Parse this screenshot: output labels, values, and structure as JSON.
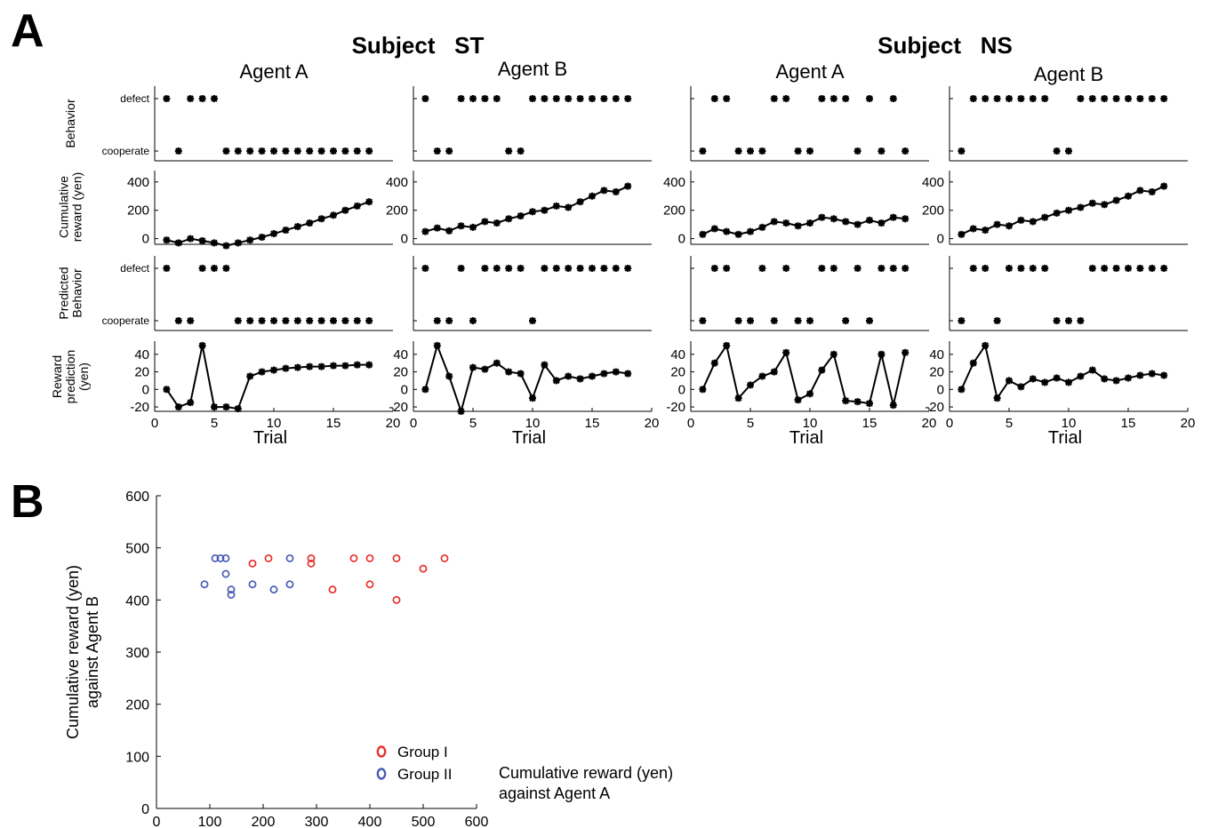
{
  "figure": {
    "panel_a_letter": "A",
    "panel_b_letter": "B",
    "subjects": [
      {
        "title": "Subject   ST"
      },
      {
        "title": "Subject   NS"
      }
    ],
    "row_labels": {
      "behavior": [
        "Behavior"
      ],
      "cumulative": [
        "Cumulative",
        "reward (yen)"
      ],
      "predicted": [
        "Predicted",
        "Behavior"
      ],
      "reward_pred": [
        "Reward",
        "prediction",
        "(yen)"
      ]
    },
    "behavior_ticks": [
      "defect",
      "cooperate"
    ],
    "x_axis_label": "Trial",
    "legend": [
      "Group I",
      "Group II"
    ],
    "colors": {
      "group1": "#e8302a",
      "group2": "#4a5bb5",
      "marks": "#000000"
    }
  },
  "chart_data": [
    {
      "type": "line",
      "panel": "A",
      "subject": "Subject ST",
      "title": "Agent A",
      "xlabel": "Trial",
      "xlim": [
        0,
        20
      ],
      "xticks": [
        0,
        5,
        10,
        15,
        20
      ],
      "behavior": {
        "yticklabels": [
          "defect",
          "cooperate"
        ],
        "x": [
          1,
          2,
          3,
          4,
          5,
          6,
          7,
          8,
          9,
          10,
          11,
          12,
          13,
          14,
          15,
          16,
          17,
          18
        ],
        "values": [
          "defect",
          "cooperate",
          "defect",
          "defect",
          "defect",
          "cooperate",
          "cooperate",
          "cooperate",
          "cooperate",
          "cooperate",
          "cooperate",
          "cooperate",
          "cooperate",
          "cooperate",
          "cooperate",
          "cooperate",
          "cooperate",
          "cooperate"
        ]
      },
      "cumulative_reward": {
        "ylabel": "Cumulative reward (yen)",
        "ylim": [
          -40,
          480
        ],
        "yticks": [
          0,
          200,
          400
        ],
        "x": [
          1,
          2,
          3,
          4,
          5,
          6,
          7,
          8,
          9,
          10,
          11,
          12,
          13,
          14,
          15,
          16,
          17,
          18
        ],
        "values": [
          -10,
          -30,
          0,
          -15,
          -30,
          -50,
          -30,
          -10,
          10,
          35,
          60,
          85,
          110,
          140,
          165,
          200,
          230,
          260
        ]
      },
      "predicted_behavior": {
        "yticklabels": [
          "defect",
          "cooperate"
        ],
        "x": [
          1,
          2,
          3,
          4,
          5,
          6,
          7,
          8,
          9,
          10,
          11,
          12,
          13,
          14,
          15,
          16,
          17,
          18
        ],
        "values": [
          "defect",
          "cooperate",
          "cooperate",
          "defect",
          "defect",
          "defect",
          "cooperate",
          "cooperate",
          "cooperate",
          "cooperate",
          "cooperate",
          "cooperate",
          "cooperate",
          "cooperate",
          "cooperate",
          "cooperate",
          "cooperate",
          "cooperate"
        ]
      },
      "reward_prediction": {
        "ylabel": "Reward prediction (yen)",
        "ylim": [
          -25,
          55
        ],
        "yticks": [
          -20,
          0,
          20,
          40
        ],
        "x": [
          1,
          2,
          3,
          4,
          5,
          6,
          7,
          8,
          9,
          10,
          11,
          12,
          13,
          14,
          15,
          16,
          17,
          18
        ],
        "values": [
          0,
          -20,
          -15,
          50,
          -20,
          -20,
          -22,
          15,
          20,
          22,
          24,
          25,
          26,
          26,
          27,
          27,
          28,
          28
        ]
      }
    },
    {
      "type": "line",
      "panel": "A",
      "subject": "Subject ST",
      "title": "Agent B",
      "xlabel": "Trial",
      "xlim": [
        0,
        20
      ],
      "xticks": [
        0,
        5,
        10,
        15,
        20
      ],
      "behavior": {
        "yticklabels": [
          "defect",
          "cooperate"
        ],
        "x": [
          1,
          2,
          3,
          4,
          5,
          6,
          7,
          8,
          9,
          10,
          11,
          12,
          13,
          14,
          15,
          16,
          17,
          18
        ],
        "values": [
          "defect",
          "cooperate",
          "cooperate",
          "defect",
          "defect",
          "defect",
          "defect",
          "cooperate",
          "cooperate",
          "defect",
          "defect",
          "defect",
          "defect",
          "defect",
          "defect",
          "defect",
          "defect",
          "defect"
        ]
      },
      "cumulative_reward": {
        "ylabel": "Cumulative reward (yen)",
        "ylim": [
          -40,
          480
        ],
        "yticks": [
          0,
          200,
          400
        ],
        "x": [
          1,
          2,
          3,
          4,
          5,
          6,
          7,
          8,
          9,
          10,
          11,
          12,
          13,
          14,
          15,
          16,
          17,
          18
        ],
        "values": [
          50,
          75,
          55,
          90,
          80,
          120,
          110,
          140,
          160,
          190,
          200,
          230,
          220,
          260,
          300,
          340,
          330,
          370
        ]
      },
      "predicted_behavior": {
        "yticklabels": [
          "defect",
          "cooperate"
        ],
        "x": [
          1,
          2,
          3,
          4,
          5,
          6,
          7,
          8,
          9,
          10,
          11,
          12,
          13,
          14,
          15,
          16,
          17,
          18
        ],
        "values": [
          "defect",
          "cooperate",
          "cooperate",
          "defect",
          "cooperate",
          "defect",
          "defect",
          "defect",
          "defect",
          "cooperate",
          "defect",
          "defect",
          "defect",
          "defect",
          "defect",
          "defect",
          "defect",
          "defect"
        ]
      },
      "reward_prediction": {
        "ylabel": "Reward prediction (yen)",
        "ylim": [
          -25,
          55
        ],
        "yticks": [
          -20,
          0,
          20,
          40
        ],
        "x": [
          1,
          2,
          3,
          4,
          5,
          6,
          7,
          8,
          9,
          10,
          11,
          12,
          13,
          14,
          15,
          16,
          17,
          18
        ],
        "values": [
          0,
          50,
          15,
          -25,
          25,
          23,
          30,
          20,
          18,
          -10,
          28,
          10,
          15,
          12,
          15,
          18,
          20,
          18
        ]
      }
    },
    {
      "type": "line",
      "panel": "A",
      "subject": "Subject NS",
      "title": "Agent A",
      "xlabel": "Trial",
      "xlim": [
        0,
        20
      ],
      "xticks": [
        0,
        5,
        10,
        15,
        20
      ],
      "behavior": {
        "yticklabels": [
          "defect",
          "cooperate"
        ],
        "x": [
          1,
          2,
          3,
          4,
          5,
          6,
          7,
          8,
          9,
          10,
          11,
          12,
          13,
          14,
          15,
          16,
          17,
          18
        ],
        "values": [
          "cooperate",
          "defect",
          "defect",
          "cooperate",
          "cooperate",
          "cooperate",
          "defect",
          "defect",
          "cooperate",
          "cooperate",
          "defect",
          "defect",
          "defect",
          "cooperate",
          "defect",
          "cooperate",
          "defect",
          "cooperate"
        ]
      },
      "cumulative_reward": {
        "ylabel": "Cumulative reward (yen)",
        "ylim": [
          -40,
          480
        ],
        "yticks": [
          0,
          200,
          400
        ],
        "x": [
          1,
          2,
          3,
          4,
          5,
          6,
          7,
          8,
          9,
          10,
          11,
          12,
          13,
          14,
          15,
          16,
          17,
          18
        ],
        "values": [
          30,
          70,
          50,
          30,
          50,
          80,
          120,
          110,
          90,
          110,
          150,
          140,
          120,
          100,
          130,
          110,
          150,
          140
        ]
      },
      "predicted_behavior": {
        "yticklabels": [
          "defect",
          "cooperate"
        ],
        "x": [
          1,
          2,
          3,
          4,
          5,
          6,
          7,
          8,
          9,
          10,
          11,
          12,
          13,
          14,
          15,
          16,
          17,
          18
        ],
        "values": [
          "cooperate",
          "defect",
          "defect",
          "cooperate",
          "cooperate",
          "defect",
          "cooperate",
          "defect",
          "cooperate",
          "cooperate",
          "defect",
          "defect",
          "cooperate",
          "defect",
          "cooperate",
          "defect",
          "defect",
          "defect"
        ]
      },
      "reward_prediction": {
        "ylabel": "Reward prediction (yen)",
        "ylim": [
          -25,
          55
        ],
        "yticks": [
          -20,
          0,
          20,
          40
        ],
        "x": [
          1,
          2,
          3,
          4,
          5,
          6,
          7,
          8,
          9,
          10,
          11,
          12,
          13,
          14,
          15,
          16,
          17,
          18
        ],
        "values": [
          0,
          30,
          50,
          -10,
          5,
          15,
          20,
          42,
          -12,
          -5,
          22,
          40,
          -13,
          -14,
          -16,
          40,
          -18,
          42
        ]
      }
    },
    {
      "type": "line",
      "panel": "A",
      "subject": "Subject NS",
      "title": "Agent B",
      "xlabel": "Trial",
      "xlim": [
        0,
        20
      ],
      "xticks": [
        0,
        5,
        10,
        15,
        20
      ],
      "behavior": {
        "yticklabels": [
          "defect",
          "cooperate"
        ],
        "x": [
          1,
          2,
          3,
          4,
          5,
          6,
          7,
          8,
          9,
          10,
          11,
          12,
          13,
          14,
          15,
          16,
          17,
          18
        ],
        "values": [
          "cooperate",
          "defect",
          "defect",
          "defect",
          "defect",
          "defect",
          "defect",
          "defect",
          "cooperate",
          "cooperate",
          "defect",
          "defect",
          "defect",
          "defect",
          "defect",
          "defect",
          "defect",
          "defect"
        ]
      },
      "cumulative_reward": {
        "ylabel": "Cumulative reward (yen)",
        "ylim": [
          -40,
          480
        ],
        "yticks": [
          0,
          200,
          400
        ],
        "x": [
          1,
          2,
          3,
          4,
          5,
          6,
          7,
          8,
          9,
          10,
          11,
          12,
          13,
          14,
          15,
          16,
          17,
          18
        ],
        "values": [
          30,
          70,
          60,
          100,
          90,
          130,
          120,
          150,
          180,
          200,
          220,
          250,
          240,
          270,
          300,
          340,
          330,
          370
        ]
      },
      "predicted_behavior": {
        "yticklabels": [
          "defect",
          "cooperate"
        ],
        "x": [
          1,
          2,
          3,
          4,
          5,
          6,
          7,
          8,
          9,
          10,
          11,
          12,
          13,
          14,
          15,
          16,
          17,
          18
        ],
        "values": [
          "cooperate",
          "defect",
          "defect",
          "cooperate",
          "defect",
          "defect",
          "defect",
          "defect",
          "cooperate",
          "cooperate",
          "cooperate",
          "defect",
          "defect",
          "defect",
          "defect",
          "defect",
          "defect",
          "defect"
        ]
      },
      "reward_prediction": {
        "ylabel": "Reward prediction (yen)",
        "ylim": [
          -25,
          55
        ],
        "yticks": [
          -20,
          0,
          20,
          40
        ],
        "x": [
          1,
          2,
          3,
          4,
          5,
          6,
          7,
          8,
          9,
          10,
          11,
          12,
          13,
          14,
          15,
          16,
          17,
          18
        ],
        "values": [
          0,
          30,
          50,
          -10,
          10,
          3,
          12,
          8,
          13,
          8,
          15,
          22,
          12,
          10,
          13,
          16,
          18,
          16
        ]
      }
    },
    {
      "type": "scatter",
      "panel": "B",
      "xlabel": "Cumulative reward (yen) against Agent A",
      "ylabel": "Cumulative reward (yen) against Agent B",
      "xlim": [
        0,
        600
      ],
      "ylim": [
        0,
        600
      ],
      "xticks": [
        0,
        100,
        200,
        300,
        400,
        500,
        600
      ],
      "yticks": [
        0,
        100,
        200,
        300,
        400,
        500,
        600
      ],
      "legend": "bottom-left",
      "series": [
        {
          "name": "Group I",
          "color": "#e8302a",
          "points": [
            [
              180,
              470
            ],
            [
              210,
              480
            ],
            [
              290,
              480
            ],
            [
              290,
              470
            ],
            [
              330,
              420
            ],
            [
              370,
              480
            ],
            [
              400,
              480
            ],
            [
              400,
              430
            ],
            [
              450,
              480
            ],
            [
              450,
              400
            ],
            [
              500,
              460
            ],
            [
              540,
              480
            ]
          ]
        },
        {
          "name": "Group II",
          "color": "#4a5bb5",
          "points": [
            [
              90,
              430
            ],
            [
              110,
              480
            ],
            [
              120,
              480
            ],
            [
              130,
              480
            ],
            [
              130,
              450
            ],
            [
              140,
              420
            ],
            [
              140,
              410
            ],
            [
              180,
              430
            ],
            [
              220,
              420
            ],
            [
              250,
              430
            ],
            [
              250,
              480
            ]
          ]
        }
      ]
    }
  ]
}
